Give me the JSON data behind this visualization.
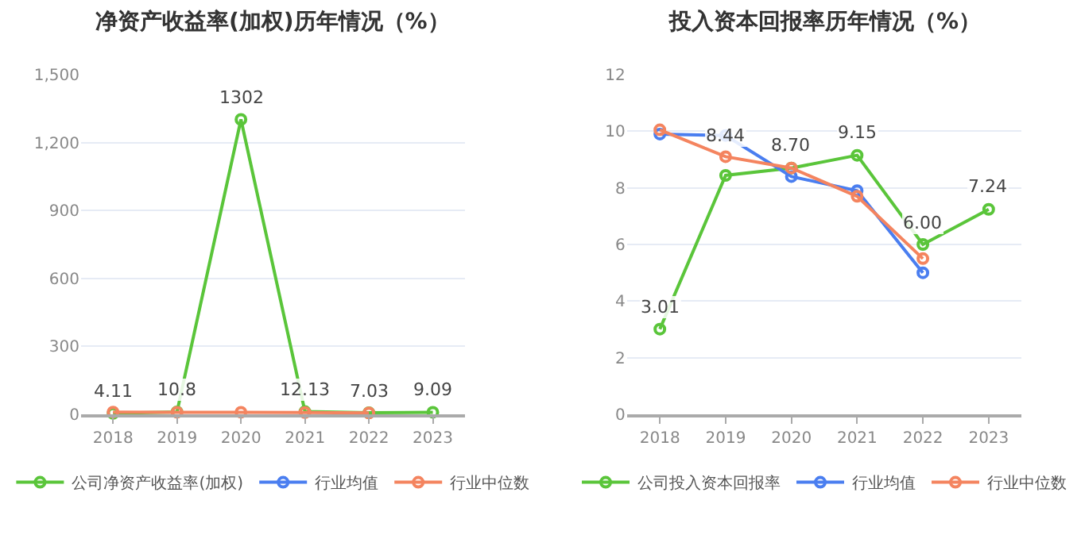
{
  "chart_data": [
    {
      "type": "line",
      "title": "净资产收益率(加权)历年情况（%）",
      "categories": [
        "2018",
        "2019",
        "2020",
        "2021",
        "2022",
        "2023"
      ],
      "series": [
        {
          "name": "公司净资产收益率(加权)",
          "color": "#5ac53a",
          "values": [
            4.11,
            10.8,
            1302,
            12.13,
            7.03,
            9.09
          ],
          "value_labels": [
            "4.11",
            "10.8",
            "1302",
            "12.13",
            "7.03",
            "9.09"
          ]
        },
        {
          "name": "行业均值",
          "color": "#4a7ef0",
          "values": [
            null,
            null,
            null,
            null,
            null,
            null
          ]
        },
        {
          "name": "行业中位数",
          "color": "#f4845f",
          "values": [
            10,
            9,
            9,
            8,
            6,
            null
          ]
        }
      ],
      "ylim": [
        0,
        1500
      ],
      "yticks": [
        0,
        {
          "value": 300,
          "label": "300"
        },
        {
          "value": 600,
          "label": "600"
        },
        {
          "value": 900,
          "label": "900"
        },
        {
          "value": 1200,
          "label": "1,200"
        },
        {
          "value": 1500,
          "label": "1,500"
        }
      ],
      "grid": "y",
      "legend": "bottom",
      "marker": "circle",
      "line_style": "solid"
    },
    {
      "type": "line",
      "title": "投入资本回报率历年情况（%）",
      "categories": [
        "2018",
        "2019",
        "2020",
        "2021",
        "2022",
        "2023"
      ],
      "series": [
        {
          "name": "公司投入资本回报率",
          "color": "#5ac53a",
          "values": [
            3.01,
            8.44,
            8.7,
            9.15,
            6.0,
            7.24
          ],
          "value_labels": [
            "3.01",
            "8.44",
            "8.70",
            "9.15",
            "6.00",
            "7.24"
          ]
        },
        {
          "name": "行业均值",
          "color": "#4a7ef0",
          "values": [
            9.9,
            9.85,
            8.4,
            7.9,
            5.0,
            null
          ]
        },
        {
          "name": "行业中位数",
          "color": "#f4845f",
          "values": [
            10.05,
            9.1,
            8.7,
            7.7,
            5.5,
            null
          ]
        }
      ],
      "ylim": [
        0,
        12
      ],
      "yticks": [
        0,
        2,
        4,
        6,
        8,
        10,
        12
      ],
      "grid": "y",
      "legend": "bottom",
      "marker": "circle",
      "line_style": "solid"
    }
  ]
}
